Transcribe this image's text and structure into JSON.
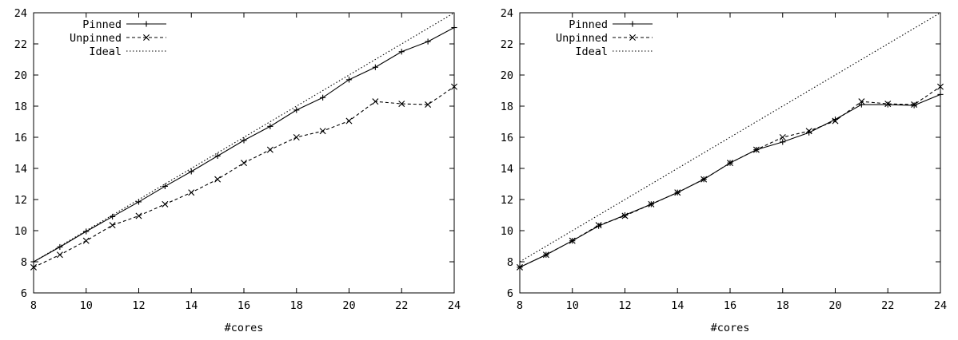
{
  "chart_data": [
    {
      "type": "line",
      "title": "",
      "xlabel": "#cores",
      "ylabel": "",
      "xlim": [
        8,
        24
      ],
      "ylim": [
        6,
        24
      ],
      "xticks": [
        8,
        10,
        12,
        14,
        16,
        18,
        20,
        22,
        24
      ],
      "yticks": [
        6,
        8,
        10,
        12,
        14,
        16,
        18,
        20,
        22,
        24
      ],
      "grid": false,
      "legend_position": "top-left",
      "series": [
        {
          "name": "Pinned",
          "style": "solid",
          "marker": "plus",
          "x": [
            8,
            9,
            10,
            11,
            12,
            13,
            14,
            15,
            16,
            17,
            18,
            19,
            20,
            21,
            22,
            23,
            24
          ],
          "y": [
            8.0,
            8.95,
            9.95,
            10.9,
            11.85,
            12.85,
            13.8,
            14.8,
            15.8,
            16.7,
            17.75,
            18.55,
            19.7,
            20.5,
            21.5,
            22.15,
            23.05
          ]
        },
        {
          "name": "Unpinned",
          "style": "dashed",
          "marker": "x",
          "x": [
            8,
            9,
            10,
            11,
            12,
            13,
            14,
            15,
            16,
            17,
            18,
            19,
            20,
            21,
            22,
            23,
            24
          ],
          "y": [
            7.65,
            8.45,
            9.35,
            10.35,
            10.95,
            11.7,
            12.45,
            13.3,
            14.35,
            15.2,
            16.0,
            16.4,
            17.05,
            18.3,
            18.15,
            18.1,
            19.25
          ]
        },
        {
          "name": "Ideal",
          "style": "dotted",
          "marker": "none",
          "x": [
            8,
            24
          ],
          "y": [
            8,
            24
          ]
        }
      ]
    },
    {
      "type": "line",
      "title": "",
      "xlabel": "#cores",
      "ylabel": "",
      "xlim": [
        8,
        24
      ],
      "ylim": [
        6,
        24
      ],
      "xticks": [
        8,
        10,
        12,
        14,
        16,
        18,
        20,
        22,
        24
      ],
      "yticks": [
        6,
        8,
        10,
        12,
        14,
        16,
        18,
        20,
        22,
        24
      ],
      "grid": false,
      "legend_position": "top-left",
      "series": [
        {
          "name": "Pinned",
          "style": "solid",
          "marker": "plus",
          "x": [
            8,
            9,
            10,
            11,
            12,
            13,
            14,
            15,
            16,
            17,
            18,
            19,
            20,
            21,
            22,
            23,
            24
          ],
          "y": [
            7.65,
            8.45,
            9.35,
            10.3,
            11.0,
            11.7,
            12.45,
            13.3,
            14.35,
            15.2,
            15.7,
            16.3,
            17.15,
            18.1,
            18.1,
            18.05,
            18.75
          ]
        },
        {
          "name": "Unpinned",
          "style": "dashed",
          "marker": "x",
          "x": [
            8,
            9,
            10,
            11,
            12,
            13,
            14,
            15,
            16,
            17,
            18,
            19,
            20,
            21,
            22,
            23,
            24
          ],
          "y": [
            7.65,
            8.45,
            9.35,
            10.35,
            10.95,
            11.7,
            12.45,
            13.3,
            14.35,
            15.2,
            16.0,
            16.4,
            17.05,
            18.3,
            18.15,
            18.1,
            19.25
          ]
        },
        {
          "name": "Ideal",
          "style": "dotted",
          "marker": "none",
          "x": [
            8,
            24
          ],
          "y": [
            8,
            24
          ]
        }
      ]
    }
  ]
}
